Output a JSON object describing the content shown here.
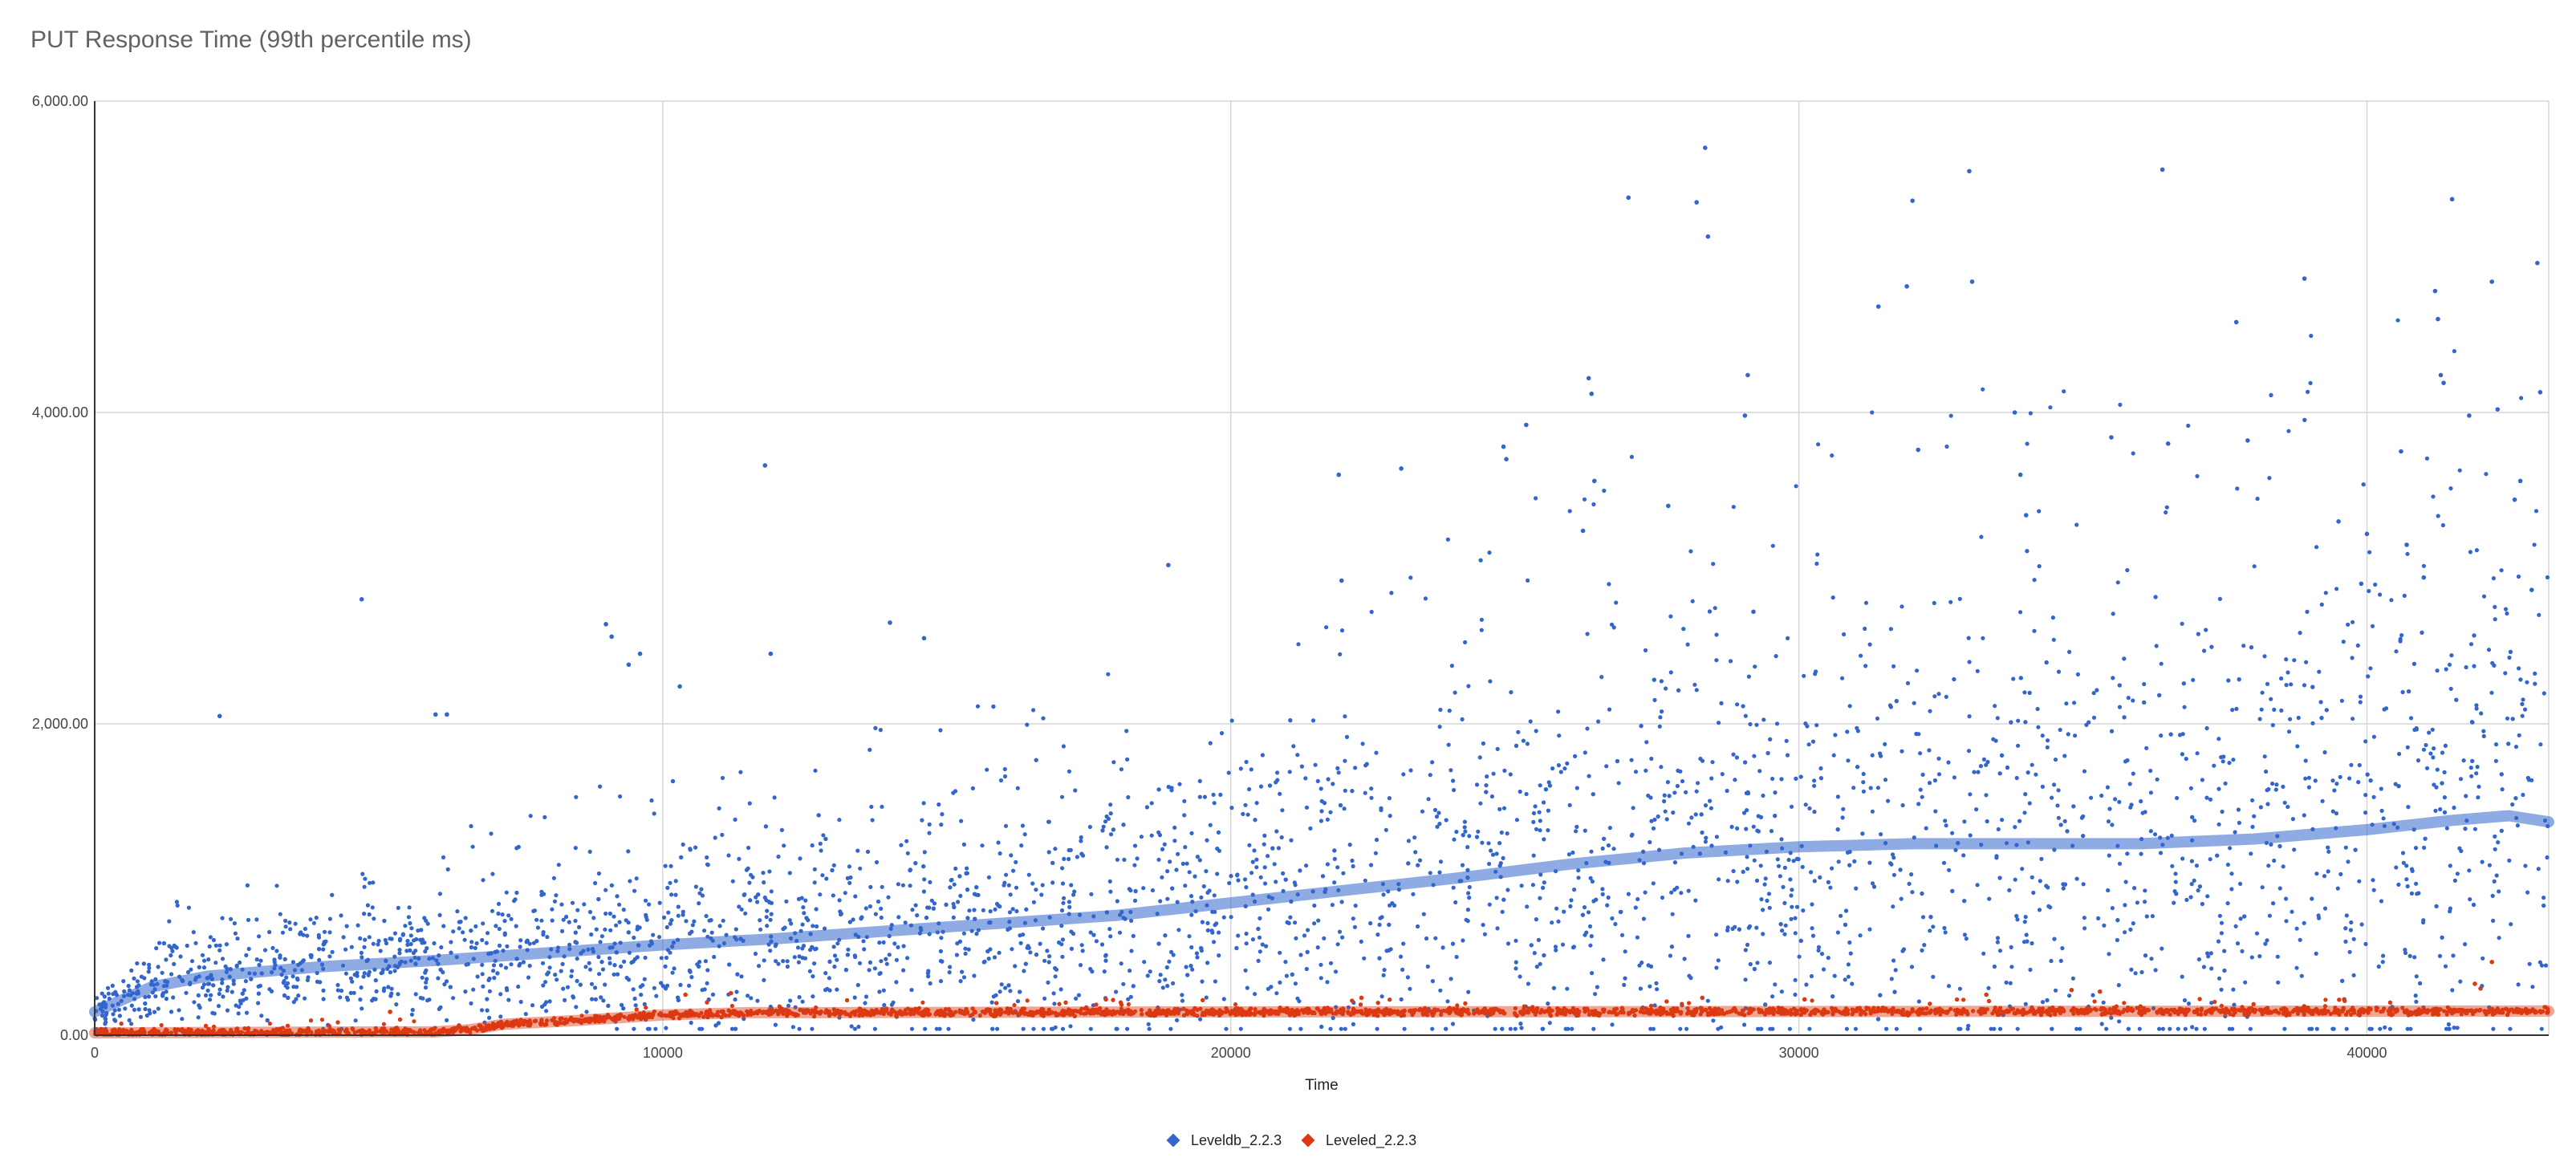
{
  "chart_data": {
    "type": "scatter",
    "title": "PUT Response Time (99th percentile ms)",
    "xlabel": "Time",
    "ylabel": "",
    "xlim": [
      0,
      43200
    ],
    "ylim": [
      0,
      6000
    ],
    "x_ticks": [
      0,
      10000,
      20000,
      30000,
      40000
    ],
    "x_tick_labels": [
      "0",
      "10000",
      "20000",
      "30000",
      "40000"
    ],
    "y_ticks": [
      0,
      2000,
      4000,
      6000
    ],
    "y_tick_labels": [
      "0.00",
      "2,000.00",
      "4,000.00",
      "6,000.00"
    ],
    "grid": true,
    "legend_position": "bottom",
    "series": [
      {
        "name": "Leveldb_2.2.3",
        "color": "#3366cc",
        "trendline": [
          [
            0,
            150
          ],
          [
            1000,
            310
          ],
          [
            2000,
            380
          ],
          [
            4000,
            440
          ],
          [
            6000,
            480
          ],
          [
            8000,
            530
          ],
          [
            10000,
            580
          ],
          [
            12000,
            620
          ],
          [
            14000,
            670
          ],
          [
            16000,
            720
          ],
          [
            18000,
            770
          ],
          [
            20000,
            850
          ],
          [
            22000,
            930
          ],
          [
            24000,
            1010
          ],
          [
            26000,
            1100
          ],
          [
            28000,
            1170
          ],
          [
            30000,
            1210
          ],
          [
            32000,
            1230
          ],
          [
            34000,
            1230
          ],
          [
            36000,
            1230
          ],
          [
            38000,
            1260
          ],
          [
            40000,
            1320
          ],
          [
            41500,
            1380
          ],
          [
            42500,
            1410
          ],
          [
            43200,
            1370
          ]
        ],
        "outliers": [
          [
            4700,
            2800
          ],
          [
            2200,
            2050
          ],
          [
            6000,
            2060
          ],
          [
            6200,
            2060
          ],
          [
            9000,
            2640
          ],
          [
            9100,
            2560
          ],
          [
            9400,
            2380
          ],
          [
            9600,
            2450
          ],
          [
            10300,
            2240
          ],
          [
            11800,
            3660
          ],
          [
            11900,
            2450
          ],
          [
            14600,
            2550
          ],
          [
            14000,
            2650
          ],
          [
            18900,
            3020
          ],
          [
            21900,
            3600
          ],
          [
            21950,
            2920
          ],
          [
            23000,
            3640
          ],
          [
            24800,
            3780
          ],
          [
            24850,
            3700
          ],
          [
            25200,
            3920
          ],
          [
            26300,
            4220
          ],
          [
            26350,
            4120
          ],
          [
            26400,
            3560
          ],
          [
            26200,
            3240
          ],
          [
            27000,
            5380
          ],
          [
            28200,
            5350
          ],
          [
            28350,
            5700
          ],
          [
            28400,
            5130
          ],
          [
            27700,
            3400
          ],
          [
            29100,
            4240
          ],
          [
            29050,
            3980
          ],
          [
            29200,
            2720
          ],
          [
            31400,
            4680
          ],
          [
            31900,
            4810
          ],
          [
            32000,
            5360
          ],
          [
            32100,
            3760
          ],
          [
            33000,
            5550
          ],
          [
            33050,
            4840
          ],
          [
            33800,
            4000
          ],
          [
            33900,
            3600
          ],
          [
            34000,
            3340
          ],
          [
            36400,
            5560
          ],
          [
            36500,
            3800
          ],
          [
            35500,
            3840
          ],
          [
            37700,
            4580
          ],
          [
            37900,
            3820
          ],
          [
            38900,
            4860
          ],
          [
            39500,
            3300
          ],
          [
            39900,
            2900
          ],
          [
            40000,
            3220
          ],
          [
            40600,
            3750
          ],
          [
            40700,
            3150
          ],
          [
            41000,
            2940
          ],
          [
            41500,
            5370
          ],
          [
            41200,
            4780
          ],
          [
            41250,
            4600
          ],
          [
            41300,
            4240
          ],
          [
            41350,
            4190
          ],
          [
            41800,
            3980
          ],
          [
            42200,
            4840
          ],
          [
            42300,
            4020
          ],
          [
            42600,
            3440
          ],
          [
            42700,
            3560
          ],
          [
            42900,
            2860
          ],
          [
            43000,
            4960
          ],
          [
            43050,
            4130
          ]
        ]
      },
      {
        "name": "Leveled_2.2.3",
        "color": "#dc3912",
        "trendline": [
          [
            0,
            15
          ],
          [
            6000,
            22
          ],
          [
            6600,
            35
          ],
          [
            7200,
            70
          ],
          [
            8500,
            95
          ],
          [
            10000,
            130
          ],
          [
            11500,
            145
          ],
          [
            13000,
            145
          ],
          [
            20000,
            150
          ],
          [
            30000,
            152
          ],
          [
            43200,
            155
          ]
        ],
        "outliers": [
          [
            5200,
            150
          ],
          [
            10400,
            260
          ],
          [
            11200,
            270
          ],
          [
            17800,
            230
          ],
          [
            22300,
            240
          ],
          [
            28300,
            240
          ],
          [
            30100,
            230
          ],
          [
            33300,
            260
          ],
          [
            34800,
            290
          ],
          [
            35300,
            280
          ],
          [
            39600,
            230
          ],
          [
            41900,
            330
          ],
          [
            42000,
            300
          ],
          [
            42200,
            470
          ]
        ]
      }
    ]
  }
}
